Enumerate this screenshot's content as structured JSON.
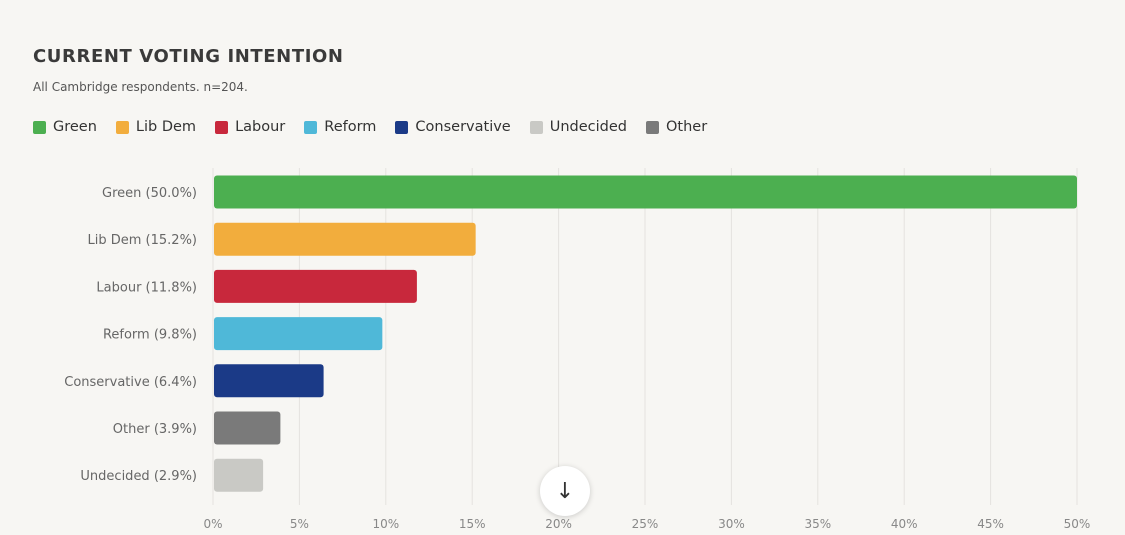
{
  "chart_data": {
    "type": "bar",
    "orientation": "horizontal",
    "title": "CURRENT VOTING INTENTION",
    "subtitle": "All Cambridge respondents. n=204.",
    "legend": [
      {
        "name": "Green",
        "color": "#4caf50"
      },
      {
        "name": "Lib Dem",
        "color": "#f2ad3d"
      },
      {
        "name": "Labour",
        "color": "#c8283c"
      },
      {
        "name": "Reform",
        "color": "#4fb8d8"
      },
      {
        "name": "Conservative",
        "color": "#1b3a87"
      },
      {
        "name": "Undecided",
        "color": "#c9c9c5"
      },
      {
        "name": "Other",
        "color": "#7a7a7a"
      }
    ],
    "legend_position": "top-left",
    "categories": [
      "Green (50.0%)",
      "Lib Dem (15.2%)",
      "Labour (11.8%)",
      "Reform (9.8%)",
      "Conservative (6.4%)",
      "Other (3.9%)",
      "Undecided (2.9%)"
    ],
    "values": [
      50.0,
      15.2,
      11.8,
      9.8,
      6.4,
      3.9,
      2.9
    ],
    "colors": [
      "#4caf50",
      "#f2ad3d",
      "#c8283c",
      "#4fb8d8",
      "#1b3a87",
      "#7a7a7a",
      "#c9c9c5"
    ],
    "xlim": [
      0,
      50
    ],
    "xticks": [
      "0%",
      "5%",
      "10%",
      "15%",
      "20%",
      "25%",
      "30%",
      "35%",
      "40%",
      "45%",
      "50%"
    ],
    "grid": true
  },
  "ui": {
    "scroll_icon": "arrow-down-icon",
    "scroll_glyph": "↓"
  }
}
